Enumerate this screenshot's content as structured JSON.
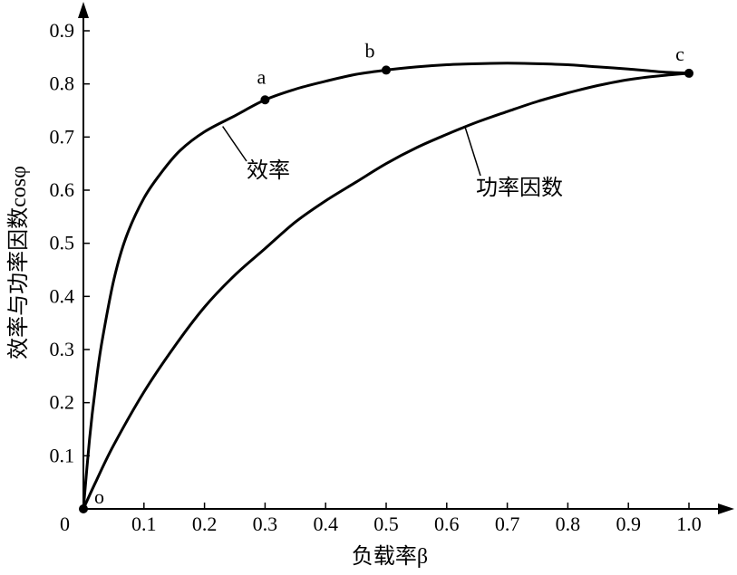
{
  "chart_data": {
    "type": "line",
    "title": "",
    "xlabel": "负载率β",
    "ylabel": "效率与功率因数cosφ",
    "xlim": [
      0,
      1.0
    ],
    "ylim": [
      0,
      0.9
    ],
    "origin_label": "0",
    "x_ticks": [
      "0.1",
      "0.2",
      "0.3",
      "0.4",
      "0.5",
      "0.6",
      "0.7",
      "0.8",
      "0.9",
      "1.0"
    ],
    "y_ticks": [
      "0.1",
      "0.2",
      "0.3",
      "0.4",
      "0.5",
      "0.6",
      "0.7",
      "0.8",
      "0.9"
    ],
    "grid": false,
    "series": [
      {
        "name": "效率",
        "color": "#000000",
        "x": [
          0,
          0.01,
          0.02,
          0.03,
          0.05,
          0.07,
          0.1,
          0.13,
          0.16,
          0.2,
          0.25,
          0.3,
          0.35,
          0.4,
          0.45,
          0.5,
          0.55,
          0.6,
          0.65,
          0.7,
          0.75,
          0.8,
          0.85,
          0.9,
          0.95,
          1.0
        ],
        "y": [
          0,
          0.13,
          0.23,
          0.31,
          0.43,
          0.51,
          0.585,
          0.635,
          0.675,
          0.71,
          0.74,
          0.77,
          0.79,
          0.805,
          0.818,
          0.826,
          0.832,
          0.836,
          0.838,
          0.839,
          0.838,
          0.836,
          0.832,
          0.828,
          0.823,
          0.82
        ]
      },
      {
        "name": "功率因数",
        "color": "#000000",
        "x": [
          0,
          0.02,
          0.05,
          0.1,
          0.15,
          0.2,
          0.25,
          0.3,
          0.35,
          0.4,
          0.45,
          0.5,
          0.55,
          0.6,
          0.65,
          0.7,
          0.75,
          0.8,
          0.85,
          0.9,
          0.95,
          1.0
        ],
        "y": [
          0,
          0.05,
          0.12,
          0.22,
          0.305,
          0.38,
          0.44,
          0.49,
          0.54,
          0.58,
          0.615,
          0.65,
          0.68,
          0.705,
          0.728,
          0.748,
          0.767,
          0.783,
          0.797,
          0.808,
          0.815,
          0.82
        ]
      }
    ],
    "points": [
      {
        "label": "o",
        "x": 0,
        "y": 0
      },
      {
        "label": "a",
        "x": 0.3,
        "y": 0.77
      },
      {
        "label": "b",
        "x": 0.5,
        "y": 0.826
      },
      {
        "label": "c",
        "x": 1.0,
        "y": 0.82
      }
    ]
  }
}
